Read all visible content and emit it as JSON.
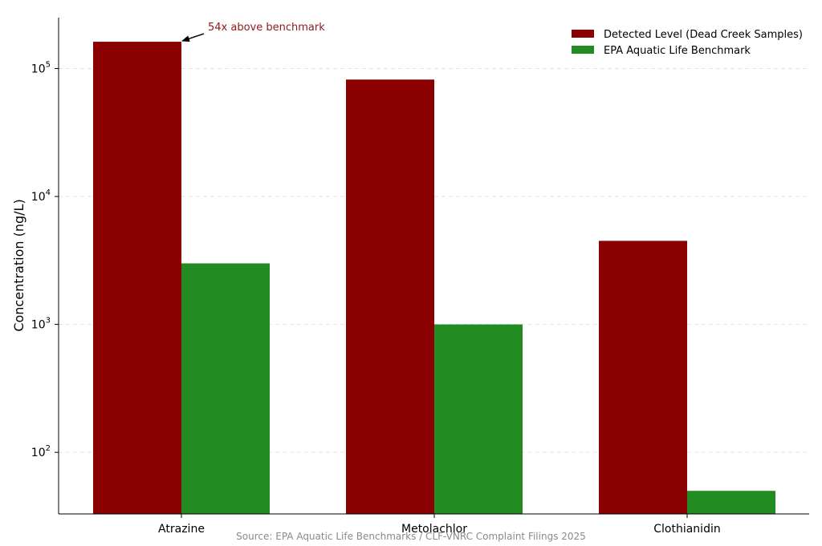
{
  "chart_data": {
    "type": "bar",
    "scale": "log",
    "categories": [
      "Atrazine",
      "Metolachlor",
      "Clothianidin"
    ],
    "series": [
      {
        "name": "Detected Level (Dead Creek Samples)",
        "values": [
          162000,
          82000,
          4500
        ],
        "color": "#8b0000"
      },
      {
        "name": "EPA Aquatic Life Benchmark",
        "values": [
          3000,
          1000,
          50
        ],
        "color": "#228b22"
      }
    ],
    "ylabel": "Concentration (ng/L)",
    "ylim": [
      33,
      250000
    ],
    "y_ticks": [
      {
        "value": 100,
        "base": "10",
        "exp": "2"
      },
      {
        "value": 1000,
        "base": "10",
        "exp": "3"
      },
      {
        "value": 10000,
        "base": "10",
        "exp": "4"
      },
      {
        "value": 100000,
        "base": "10",
        "exp": "5"
      }
    ],
    "grid": "horizontal-dashed",
    "legend_position": "top-right",
    "annotation": {
      "text": "54x above benchmark",
      "category": "Atrazine",
      "series": 0,
      "color": "#8b1a1a"
    },
    "source": "Source: EPA Aquatic Life Benchmarks / CLF-VNRC Complaint Filings 2025"
  }
}
